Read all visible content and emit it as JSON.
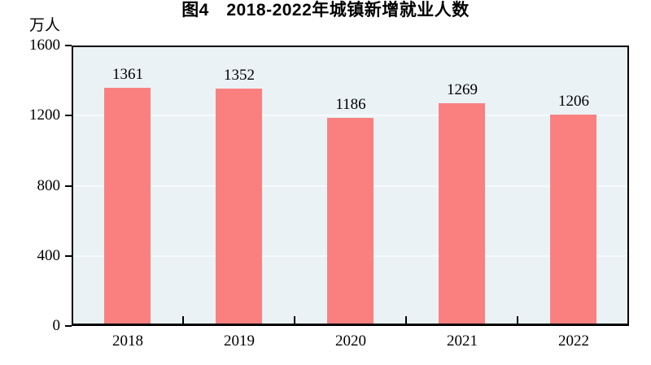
{
  "figure": {
    "title": "图4　2018-2022年城镇新增就业人数",
    "unit_label": "万人",
    "colors": {
      "bar": "#FA8080",
      "plot_background": "#EAF2F5",
      "gridline": "#F7FAFC",
      "axis": "#000000",
      "text": "#000000",
      "page_background": "#FFFFFF"
    }
  },
  "chart_data": {
    "type": "bar",
    "title": "图4　2018-2022年城镇新增就业人数",
    "categories": [
      "2018",
      "2019",
      "2020",
      "2021",
      "2022"
    ],
    "values": [
      1361,
      1352,
      1186,
      1269,
      1206
    ],
    "data_labels": [
      "1361",
      "1352",
      "1186",
      "1269",
      "1206"
    ],
    "xlabel": "",
    "ylabel": "万人",
    "ylim": [
      0,
      1600
    ],
    "yticks": [
      0,
      400,
      800,
      1200,
      1600
    ],
    "grid": true,
    "gridline_values": [
      400,
      800,
      1200
    ],
    "legend": false
  }
}
